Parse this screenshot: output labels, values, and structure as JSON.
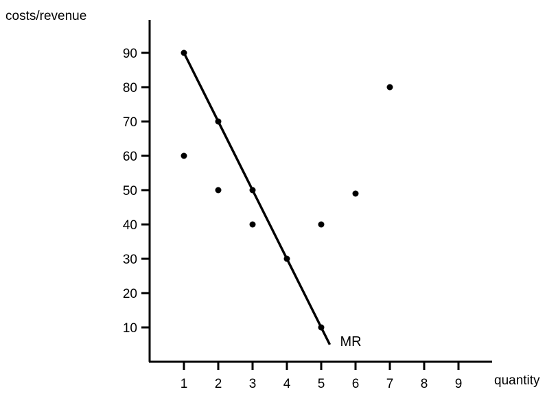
{
  "chart_data": {
    "type": "scatter",
    "title": "",
    "xlabel": "quantity",
    "ylabel": "costs/revenue",
    "xlim": [
      0,
      9.9
    ],
    "ylim": [
      0,
      101
    ],
    "x_ticks": [
      1,
      2,
      3,
      4,
      5,
      6,
      7,
      8,
      9
    ],
    "y_ticks": [
      10,
      20,
      30,
      40,
      50,
      60,
      70,
      80,
      90
    ],
    "grid": false,
    "legend": "none",
    "colors": {
      "axis": "#000000",
      "marks": "#000000"
    },
    "points": [
      {
        "x": 1,
        "y": 90
      },
      {
        "x": 1,
        "y": 60
      },
      {
        "x": 2,
        "y": 70
      },
      {
        "x": 2,
        "y": 50
      },
      {
        "x": 3,
        "y": 50
      },
      {
        "x": 3,
        "y": 40
      },
      {
        "x": 4,
        "y": 30
      },
      {
        "x": 5,
        "y": 40
      },
      {
        "x": 5,
        "y": 10
      },
      {
        "x": 6,
        "y": 49
      },
      {
        "x": 7,
        "y": 80
      }
    ],
    "lines": [
      {
        "label": "MR",
        "points": [
          {
            "x": 1,
            "y": 90
          },
          {
            "x": 5.25,
            "y": 5
          }
        ]
      }
    ]
  }
}
